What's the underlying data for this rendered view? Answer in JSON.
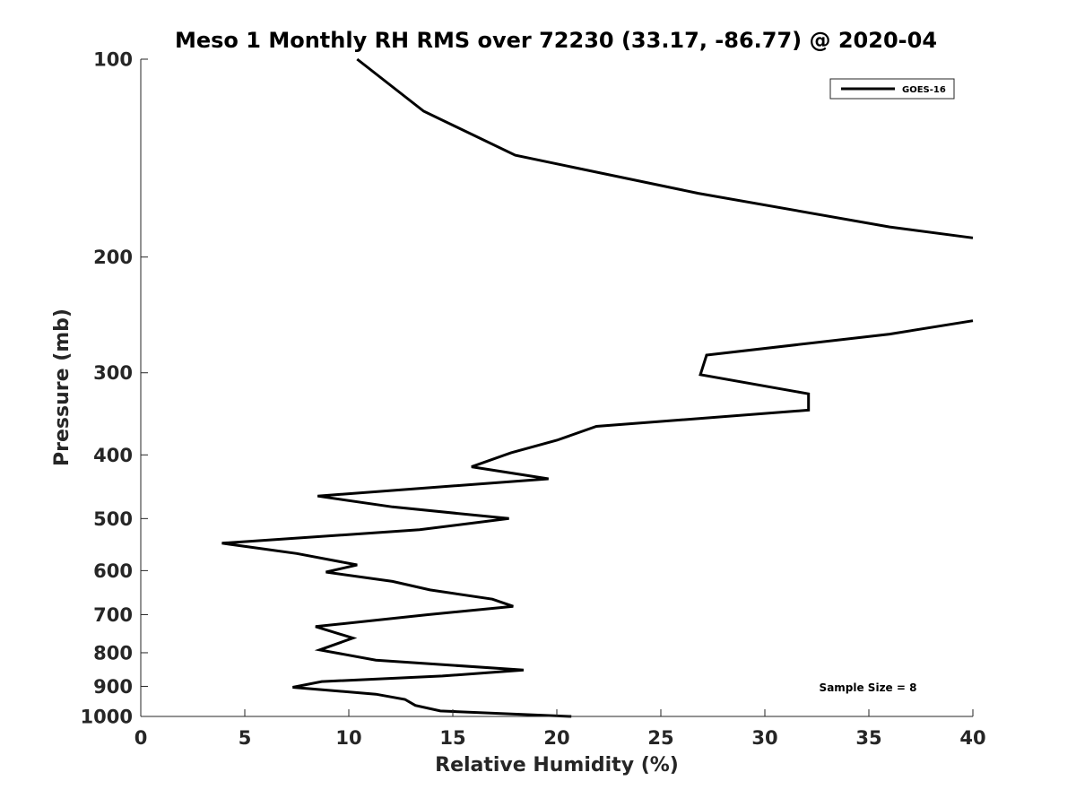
{
  "chart_data": {
    "type": "line",
    "title": "Meso 1 Monthly RH RMS over 72230 (33.17, -86.77) @ 2020-04",
    "xlabel": "Relative Humidity (%)",
    "ylabel": "Pressure (mb)",
    "xlim": [
      0,
      40
    ],
    "ylim": [
      1000,
      100
    ],
    "yscale": "log",
    "y_reversed": true,
    "grid": false,
    "legend_position": "top-right",
    "x_ticks": [
      0,
      5,
      10,
      15,
      20,
      25,
      30,
      35,
      40
    ],
    "x_tick_labels": [
      "0",
      "5",
      "10",
      "15",
      "20",
      "25",
      "30",
      "35",
      "40"
    ],
    "y_ticks": [
      100,
      200,
      300,
      400,
      500,
      600,
      700,
      800,
      900,
      1000
    ],
    "y_tick_labels": [
      "100",
      "200",
      "300",
      "400",
      "500",
      "600",
      "700",
      "800",
      "900",
      "1000"
    ],
    "annotation": "Sample Size = 8",
    "series": [
      {
        "name": "GOES-16",
        "color": "#000000",
        "segments": [
          {
            "x": [
              10.4,
              13.6,
              18.0,
              26.8,
              36.0,
              40.0
            ],
            "y": [
              100,
              120,
              140,
              160,
              180,
              187
            ]
          },
          {
            "x": [
              40.0,
              36.0,
              27.2,
              26.9,
              32.1,
              32.1,
              21.9,
              20.0,
              17.8,
              15.9,
              19.6,
              8.5,
              12.1,
              17.7,
              13.4,
              3.9,
              7.5,
              10.4,
              8.9,
              12.1,
              13.9,
              16.9,
              17.9,
              13.8,
              8.4,
              10.2,
              8.6,
              11.3,
              18.4,
              14.5,
              8.7,
              7.3,
              11.3,
              12.7,
              13.2,
              14.4,
              20.7
            ],
            "y": [
              250,
              262,
              282,
              302,
              323,
              342,
              362,
              380,
              397,
              417,
              435,
              462,
              480,
              500,
              520,
              545,
              565,
              588,
              603,
              623,
              642,
              663,
              680,
              700,
              730,
              760,
              792,
              821,
              850,
              868,
              885,
              903,
              925,
              942,
              962,
              981,
              1000
            ]
          }
        ]
      }
    ]
  }
}
